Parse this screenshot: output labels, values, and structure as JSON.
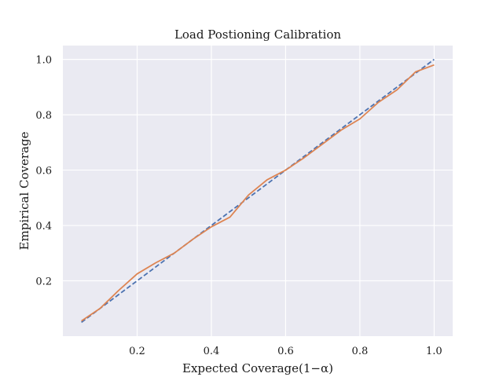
{
  "chart_data": {
    "type": "line",
    "title": "Load Postioning Calibration",
    "xlabel": "Expected Coverage(1−α)",
    "ylabel": "Empirical Coverage",
    "xlim": [
      0.0,
      1.05
    ],
    "ylim": [
      0.0,
      1.05
    ],
    "xticks": [
      0.2,
      0.4,
      0.6,
      0.8,
      1.0
    ],
    "yticks": [
      0.2,
      0.4,
      0.6,
      0.8,
      1.0
    ],
    "xtick_labels": [
      "0.2",
      "0.4",
      "0.6",
      "0.8",
      "1.0"
    ],
    "ytick_labels": [
      "0.2",
      "0.4",
      "0.6",
      "0.8",
      "1.0"
    ],
    "grid": true,
    "legend": false,
    "background": "#eaeaf2",
    "series": [
      {
        "style": "dashed",
        "color": "#4c72b0",
        "x": [
          0.05,
          1.0
        ],
        "y": [
          0.05,
          1.0
        ]
      },
      {
        "style": "solid",
        "color": "#dd8452",
        "x": [
          0.05,
          0.1,
          0.15,
          0.2,
          0.25,
          0.3,
          0.35,
          0.4,
          0.45,
          0.5,
          0.55,
          0.6,
          0.65,
          0.7,
          0.75,
          0.8,
          0.85,
          0.9,
          0.95,
          1.0
        ],
        "y": [
          0.055,
          0.1,
          0.165,
          0.225,
          0.265,
          0.3,
          0.35,
          0.395,
          0.43,
          0.51,
          0.565,
          0.6,
          0.645,
          0.695,
          0.745,
          0.785,
          0.845,
          0.89,
          0.955,
          0.98
        ]
      }
    ]
  }
}
